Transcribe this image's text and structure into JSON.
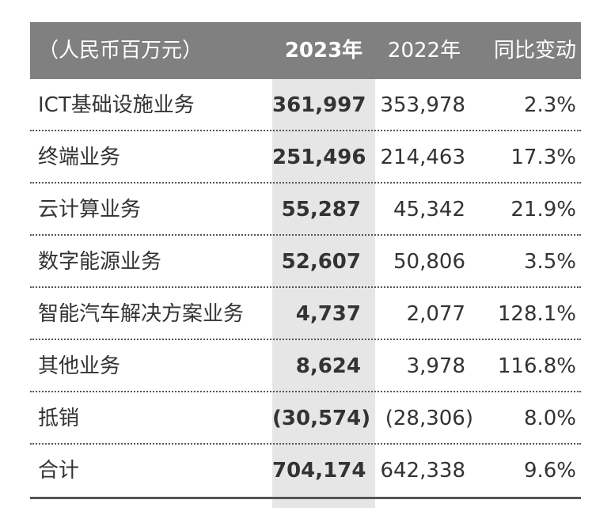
{
  "header": {
    "unit": "（人民币百万元）",
    "col_2023": "2023年",
    "col_2022": "2022年",
    "col_change": "同比变动"
  },
  "rows": [
    {
      "name": "ICT基础设施业务",
      "v2023": "361,997",
      "v2022": "353,978",
      "change": "2.3%"
    },
    {
      "name": "终端业务",
      "v2023": "251,496",
      "v2022": "214,463",
      "change": "17.3%"
    },
    {
      "name": "云计算业务",
      "v2023": "55,287",
      "v2022": "45,342",
      "change": "21.9%"
    },
    {
      "name": "数字能源业务",
      "v2023": "52,607",
      "v2022": "50,806",
      "change": "3.5%"
    },
    {
      "name": "智能汽车解决方案业务",
      "v2023": "4,737",
      "v2022": "2,077",
      "change": "128.1%"
    },
    {
      "name": "其他业务",
      "v2023": "8,624",
      "v2022": "3,978",
      "change": "116.8%"
    },
    {
      "name": "抵销",
      "v2023": "(30,574)",
      "v2022": "(28,306)",
      "change": "8.0%"
    },
    {
      "name": "合计",
      "v2023": "704,174",
      "v2022": "642,338",
      "change": "9.6%"
    }
  ],
  "colors": {
    "header_bg": "#808080",
    "highlight_col_bg": "#e6e6e6",
    "text": "#333333"
  }
}
